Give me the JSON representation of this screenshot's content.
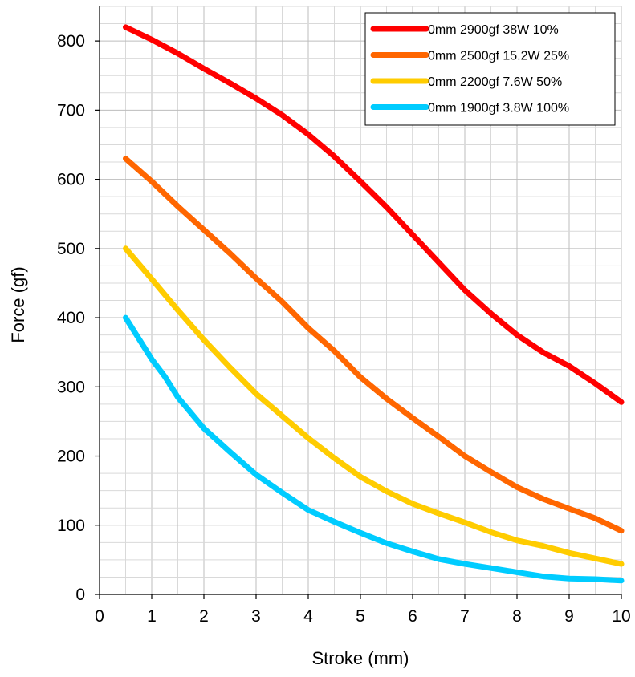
{
  "chart_data": {
    "type": "line",
    "title": "",
    "xlabel": "Stroke (mm)",
    "ylabel": "Force (gf)",
    "xlim": [
      0,
      10
    ],
    "ylim": [
      0,
      850
    ],
    "xticks": [
      0,
      1,
      2,
      3,
      4,
      5,
      6,
      7,
      8,
      9,
      10
    ],
    "yticks": [
      0,
      100,
      200,
      300,
      400,
      500,
      600,
      700,
      800
    ],
    "grid": true,
    "legend_position": "top-right",
    "series": [
      {
        "name": "0mm 2900gf 38W 10%",
        "color": "#ff0000",
        "x": [
          0.5,
          1,
          1.5,
          2,
          2.5,
          3,
          3.5,
          4,
          4.5,
          5,
          5.5,
          6,
          6.5,
          7,
          7.5,
          8,
          8.5,
          9,
          9.5,
          10
        ],
        "y": [
          820,
          802,
          782,
          760,
          739,
          717,
          693,
          665,
          633,
          597,
          560,
          520,
          480,
          440,
          406,
          375,
          350,
          330,
          305,
          278
        ]
      },
      {
        "name": "0mm 2500gf 15.2W 25%",
        "color": "#ff6600",
        "x": [
          0.5,
          1,
          1.5,
          2,
          2.5,
          3,
          3.5,
          4,
          4.5,
          5,
          5.5,
          6,
          6.5,
          7,
          7.5,
          8,
          8.5,
          9,
          9.5,
          10
        ],
        "y": [
          630,
          597,
          561,
          527,
          493,
          457,
          423,
          385,
          352,
          314,
          283,
          255,
          228,
          200,
          177,
          155,
          138,
          124,
          110,
          92
        ]
      },
      {
        "name": "0mm 2200gf 7.6W 50%",
        "color": "#ffcc00",
        "x": [
          0.5,
          1,
          1.5,
          2,
          2.5,
          3,
          3.5,
          4,
          4.5,
          5,
          5.5,
          6,
          6.5,
          7,
          7.5,
          8,
          8.5,
          9,
          9.5,
          10
        ],
        "y": [
          500,
          456,
          411,
          368,
          328,
          290,
          258,
          226,
          197,
          170,
          149,
          131,
          117,
          104,
          90,
          78,
          70,
          60,
          52,
          44
        ]
      },
      {
        "name": "0mm 1900gf 3.8W 100%",
        "color": "#00ccff",
        "x": [
          0.5,
          1,
          1.25,
          1.5,
          2,
          2.5,
          3,
          3.5,
          4,
          4.5,
          5,
          5.5,
          6,
          6.5,
          7,
          7.5,
          8,
          8.5,
          9,
          9.5,
          10
        ],
        "y": [
          400,
          340,
          315,
          285,
          240,
          206,
          173,
          147,
          122,
          105,
          89,
          74,
          62,
          51,
          44,
          38,
          32,
          26,
          23,
          22,
          20
        ]
      }
    ]
  }
}
